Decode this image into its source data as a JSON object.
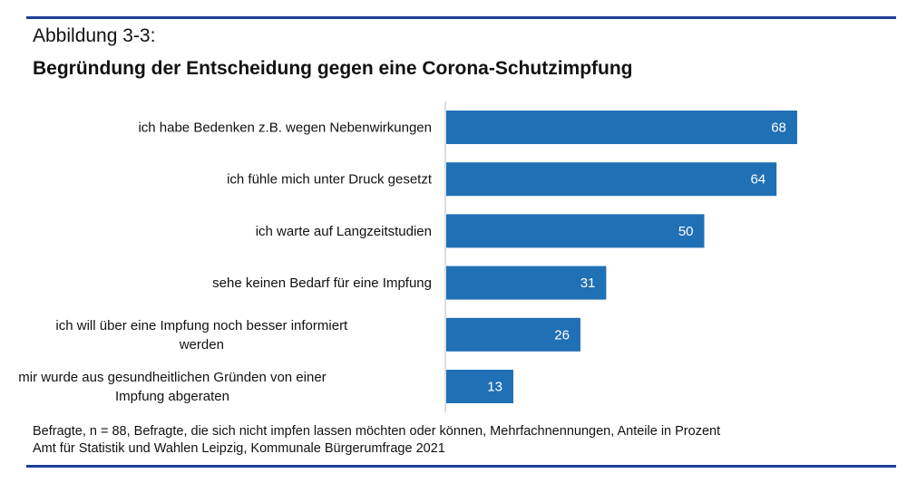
{
  "header": {
    "figure_label": "Abbildung 3-3:",
    "title": "Begründung der Entscheidung gegen eine Corona-Schutzimpfung"
  },
  "footer": {
    "note": "Befragte, n = 88, Befragte, die sich nicht impfen lassen möchten oder können, Mehrfachnennungen, Anteile in Prozent",
    "source": "Amt für Statistik und Wahlen Leipzig, Kommunale Bürgerumfrage 2021"
  },
  "colors": {
    "bar": "#2070b6",
    "rule": "#1f3c99",
    "axis": "#d0d0d0"
  },
  "chart_data": {
    "type": "bar",
    "orientation": "horizontal",
    "title": "Begründung der Entscheidung gegen eine Corona-Schutzimpfung",
    "xlabel": "",
    "ylabel": "",
    "unit": "Prozent",
    "xlim": [
      0,
      75
    ],
    "grid": false,
    "legend": "none",
    "categories": [
      [
        "ich habe Bedenken z.B. wegen Nebenwirkungen"
      ],
      [
        "ich fühle mich unter Druck gesetzt"
      ],
      [
        "ich warte auf Langzeitstudien"
      ],
      [
        "sehe keinen Bedarf für eine Impfung"
      ],
      [
        "ich will über eine Impfung noch besser informiert",
        "werden"
      ],
      [
        "mir wurde aus gesundheitlichen Gründen von einer",
        "Impfung abgeraten"
      ]
    ],
    "values": [
      68,
      64,
      50,
      31,
      26,
      13
    ]
  }
}
